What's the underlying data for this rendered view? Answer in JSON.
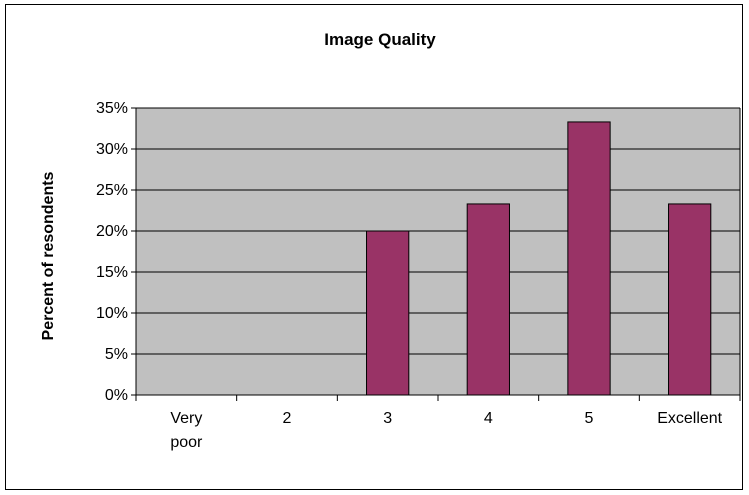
{
  "colors": {
    "plot_background": "#c0c0c0",
    "bar_fill": "#993366",
    "bar_stroke": "#000000",
    "gridline": "#000000"
  },
  "chart_data": {
    "type": "bar",
    "title": "Image Quality",
    "xlabel": "",
    "ylabel": "Percent of resondents",
    "categories": [
      "Very poor",
      "2",
      "3",
      "4",
      "5",
      "Excellent"
    ],
    "category_lines": [
      [
        "Very",
        "poor"
      ],
      [
        "2"
      ],
      [
        "3"
      ],
      [
        "4"
      ],
      [
        "5"
      ],
      [
        "Excellent"
      ]
    ],
    "values": [
      0,
      0,
      20,
      23.3,
      33.3,
      23.3
    ],
    "ylim": [
      0,
      35
    ],
    "yticks": [
      0,
      5,
      10,
      15,
      20,
      25,
      30,
      35
    ],
    "ytick_labels": [
      "0%",
      "5%",
      "10%",
      "15%",
      "20%",
      "25%",
      "30%",
      "35%"
    ],
    "grid": true,
    "legend": "none"
  }
}
